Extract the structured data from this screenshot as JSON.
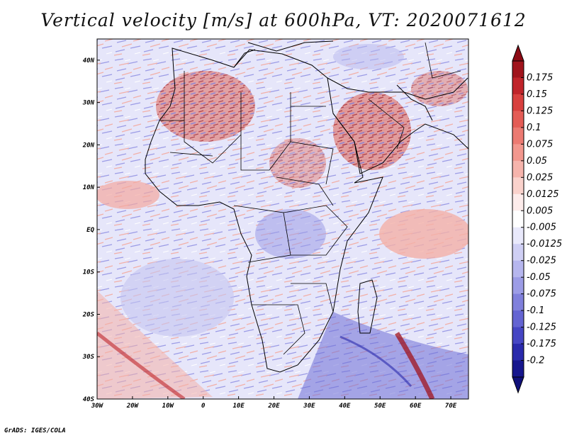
{
  "title": "Vertical velocity [m/s] at 600hPa, VT: 2020071612",
  "credit": "GrADS: IGES/COLA",
  "map": {
    "lat_labels": [
      "40N",
      "30N",
      "20N",
      "10N",
      "EQ",
      "10S",
      "20S",
      "30S",
      "40S"
    ],
    "lat_values": [
      40,
      30,
      20,
      10,
      0,
      -10,
      -20,
      -30,
      -40
    ],
    "lon_labels": [
      "30W",
      "20W",
      "10W",
      "0",
      "10E",
      "20E",
      "30E",
      "40E",
      "50E",
      "60E",
      "70E"
    ],
    "lon_values": [
      -30,
      -20,
      -10,
      0,
      10,
      20,
      30,
      40,
      50,
      60,
      70
    ],
    "lon_range": [
      -30,
      75
    ],
    "lat_range": [
      -40,
      45
    ]
  },
  "colorbar": {
    "labels": [
      "0.175",
      "0.15",
      "0.125",
      "0.1",
      "0.075",
      "0.05",
      "0.025",
      "0.0125",
      "0.005",
      "-0.005",
      "-0.0125",
      "-0.025",
      "-0.05",
      "-0.075",
      "-0.1",
      "-0.125",
      "-0.175",
      "-0.2"
    ],
    "colors": [
      "#a0141c",
      "#c0242a",
      "#d8403e",
      "#e45c56",
      "#ec7a72",
      "#f2978e",
      "#f6b4ac",
      "#fad2cc",
      "#fdeceb",
      "#ffffff",
      "#e9e9fb",
      "#cfcff4",
      "#b6b6ee",
      "#9c9ce6",
      "#8080dc",
      "#6464d2",
      "#4646c4",
      "#2a2aac",
      "#16168e"
    ],
    "top_arrow_color": "#8c0a14",
    "bottom_arrow_color": "#10107a"
  }
}
